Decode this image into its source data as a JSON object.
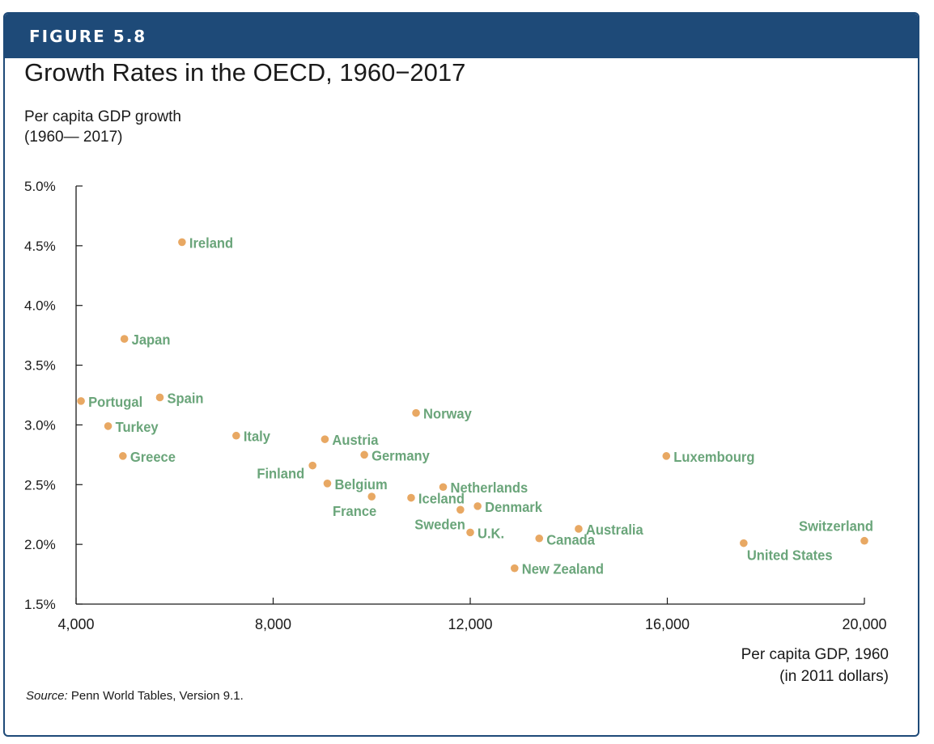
{
  "figure": {
    "label": "FIGURE 5.8",
    "title": "Growth Rates in the OECD, 1960−2017",
    "source_label": "Source:",
    "source_text": " Penn World Tables, Version 9.1."
  },
  "colors": {
    "header": "#1e4a78",
    "point": "#e8a863",
    "label": "#6aa57a",
    "axis": "#1a1a1a"
  },
  "chart_data": {
    "type": "scatter",
    "title": "Growth Rates in the OECD, 1960−2017",
    "ylabel_lines": [
      "Per capita GDP growth",
      "(1960— 2017)"
    ],
    "xlabel_lines": [
      "Per capita GDP, 1960",
      "(in 2011 dollars)"
    ],
    "xlim": [
      4000,
      20000
    ],
    "ylim": [
      1.5,
      5.0
    ],
    "xticks": [
      4000,
      8000,
      12000,
      16000,
      20000
    ],
    "xtick_labels": [
      "4,000",
      "8,000",
      "12,000",
      "16,000",
      "20,000"
    ],
    "yticks": [
      1.5,
      2.0,
      2.5,
      3.0,
      3.5,
      4.0,
      4.5,
      5.0
    ],
    "ytick_labels": [
      "1.5%",
      "2.0%",
      "2.5%",
      "3.0%",
      "3.5%",
      "4.0%",
      "4.5%",
      "5.0%"
    ],
    "grid": false,
    "points": [
      {
        "name": "Ireland",
        "x": 6150,
        "y": 4.53,
        "side": "right"
      },
      {
        "name": "Japan",
        "x": 4980,
        "y": 3.72,
        "side": "right"
      },
      {
        "name": "Spain",
        "x": 5700,
        "y": 3.23,
        "side": "right"
      },
      {
        "name": "Portugal",
        "x": 4100,
        "y": 3.2,
        "side": "right"
      },
      {
        "name": "Turkey",
        "x": 4650,
        "y": 2.99,
        "side": "right"
      },
      {
        "name": "Greece",
        "x": 4950,
        "y": 2.74,
        "side": "right"
      },
      {
        "name": "Italy",
        "x": 7250,
        "y": 2.91,
        "side": "right"
      },
      {
        "name": "Norway",
        "x": 10900,
        "y": 3.1,
        "side": "right"
      },
      {
        "name": "Austria",
        "x": 9050,
        "y": 2.88,
        "side": "right"
      },
      {
        "name": "Germany",
        "x": 9850,
        "y": 2.75,
        "side": "right"
      },
      {
        "name": "Finland",
        "x": 8800,
        "y": 2.66,
        "side": "left"
      },
      {
        "name": "Belgium",
        "x": 9100,
        "y": 2.51,
        "side": "right"
      },
      {
        "name": "France",
        "x": 10000,
        "y": 2.4,
        "side": "below-left"
      },
      {
        "name": "Netherlands",
        "x": 11450,
        "y": 2.48,
        "side": "right"
      },
      {
        "name": "Iceland",
        "x": 10800,
        "y": 2.39,
        "side": "right"
      },
      {
        "name": "Denmark",
        "x": 12150,
        "y": 2.32,
        "side": "right"
      },
      {
        "name": "Sweden",
        "x": 11800,
        "y": 2.29,
        "side": "below-left"
      },
      {
        "name": "U.K.",
        "x": 12000,
        "y": 2.1,
        "side": "right"
      },
      {
        "name": "Australia",
        "x": 14200,
        "y": 2.13,
        "side": "right"
      },
      {
        "name": "Canada",
        "x": 13400,
        "y": 2.05,
        "side": "right-low"
      },
      {
        "name": "New Zealand",
        "x": 12900,
        "y": 1.8,
        "side": "right"
      },
      {
        "name": "Luxembourg",
        "x": 15980,
        "y": 2.74,
        "side": "right"
      },
      {
        "name": "United States",
        "x": 17550,
        "y": 2.01,
        "side": "below-right"
      },
      {
        "name": "Switzerland",
        "x": 20000,
        "y": 2.03,
        "side": "above"
      }
    ]
  }
}
